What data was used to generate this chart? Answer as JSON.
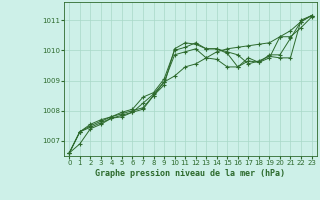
{
  "title": "Graphe pression niveau de la mer (hPa)",
  "bg_color": "#cdf0e8",
  "line_color": "#2d6a2d",
  "grid_color": "#a8d8c8",
  "xlim": [
    -0.5,
    23.5
  ],
  "ylim": [
    1006.5,
    1011.6
  ],
  "yticks": [
    1007,
    1008,
    1009,
    1010,
    1011
  ],
  "xticks": [
    0,
    1,
    2,
    3,
    4,
    5,
    6,
    7,
    8,
    9,
    10,
    11,
    12,
    13,
    14,
    15,
    16,
    17,
    18,
    19,
    20,
    21,
    22,
    23
  ],
  "series": [
    [
      1006.6,
      1006.9,
      1007.4,
      1007.55,
      1007.75,
      1007.85,
      1007.95,
      1008.25,
      1008.55,
      1008.95,
      1009.15,
      1009.45,
      1009.55,
      1009.75,
      1009.95,
      1010.05,
      1010.1,
      1010.15,
      1010.2,
      1010.25,
      1010.45,
      1010.65,
      1010.95,
      1011.15
    ],
    [
      1006.6,
      1007.3,
      1007.5,
      1007.65,
      1007.8,
      1007.9,
      1008.0,
      1008.1,
      1008.5,
      1008.85,
      1010.05,
      1010.25,
      1010.2,
      1010.05,
      1010.05,
      1009.95,
      1009.85,
      1009.55,
      1009.65,
      1009.8,
      1009.75,
      1009.75,
      1011.0,
      1011.15
    ],
    [
      1006.6,
      1007.3,
      1007.55,
      1007.7,
      1007.8,
      1007.95,
      1008.05,
      1008.45,
      1008.6,
      1009.05,
      1010.0,
      1010.1,
      1010.25,
      1010.05,
      1010.05,
      1009.9,
      1009.45,
      1009.65,
      1009.6,
      1009.85,
      1009.85,
      1010.4,
      1010.95,
      1011.15
    ],
    [
      1006.6,
      1007.3,
      1007.45,
      1007.6,
      1007.75,
      1007.8,
      1007.95,
      1008.05,
      1008.5,
      1008.95,
      1009.85,
      1009.95,
      1010.05,
      1009.75,
      1009.7,
      1009.45,
      1009.45,
      1009.75,
      1009.6,
      1009.75,
      1010.45,
      1010.45,
      1010.75,
      1011.1
    ]
  ]
}
